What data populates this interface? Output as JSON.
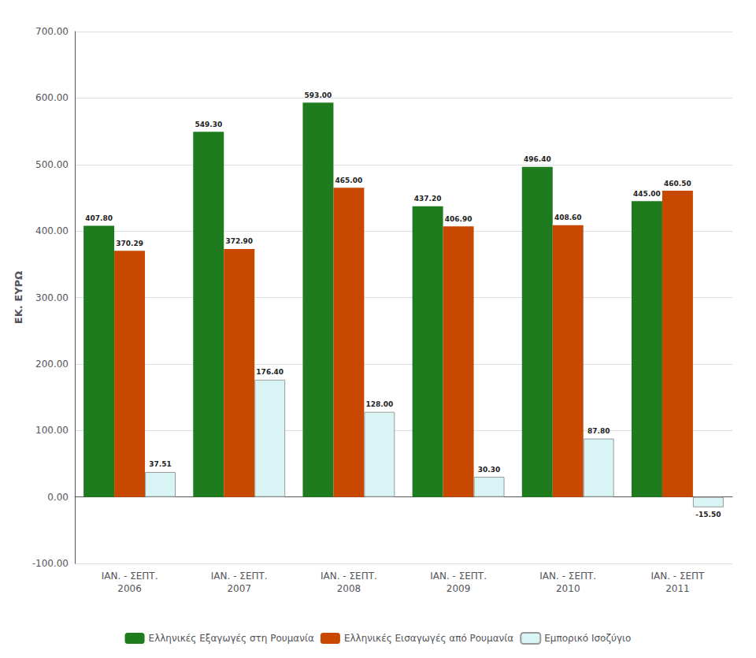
{
  "chart_data": {
    "type": "bar",
    "categories": [
      "IAN. - ΣΕΠΤ.\n2006",
      "IAN. - ΣΕΠΤ.\n2007",
      "IAN. - ΣΕΠΤ.\n2008",
      "IAN. - ΣΕΠΤ.\n2009",
      "IAN. - ΣΕΠΤ.\n2010",
      "IAN. - ΣΕΠΤ\n2011"
    ],
    "series": [
      {
        "name": "Ελληνικές Εξαγωγές στη Ρουμανία",
        "color": "#1e7b1e",
        "values": [
          407.8,
          549.3,
          593.0,
          437.2,
          496.4,
          445.0
        ],
        "value_labels": [
          "407.80",
          "549.30",
          "593.00",
          "437.20",
          "496.40",
          "445.00"
        ]
      },
      {
        "name": "Ελληνικές Εισαγωγές από Ρουμανία",
        "color": "#c84800",
        "values": [
          370.29,
          372.9,
          465.0,
          406.9,
          408.6,
          460.5
        ],
        "value_labels": [
          "370.29",
          "372.90",
          "465.00",
          "406.90",
          "408.60",
          "460.50"
        ]
      },
      {
        "name": "Εμπορικό Ισοζύγιο",
        "color": "#d8f4f4",
        "values": [
          37.51,
          176.4,
          128.0,
          30.3,
          87.8,
          -15.5
        ],
        "value_labels": [
          "37.51",
          "176.40",
          "128.00",
          "30.30",
          "87.80",
          "-15.50"
        ]
      }
    ],
    "ylabel": "ΕΚ. ΕΥΡΩ",
    "ylim": [
      -100,
      700
    ],
    "yticks": [
      {
        "value": -100,
        "label": "-100.00"
      },
      {
        "value": 0,
        "label": "0.00"
      },
      {
        "value": 100,
        "label": "100.00"
      },
      {
        "value": 200,
        "label": "200.00"
      },
      {
        "value": 300,
        "label": "300.00"
      },
      {
        "value": 400,
        "label": "400.00"
      },
      {
        "value": 500,
        "label": "500.00"
      },
      {
        "value": 600,
        "label": "600.00"
      },
      {
        "value": 700,
        "label": "700.00"
      }
    ],
    "grid": true,
    "legend": "bottom",
    "data_labels": true
  }
}
